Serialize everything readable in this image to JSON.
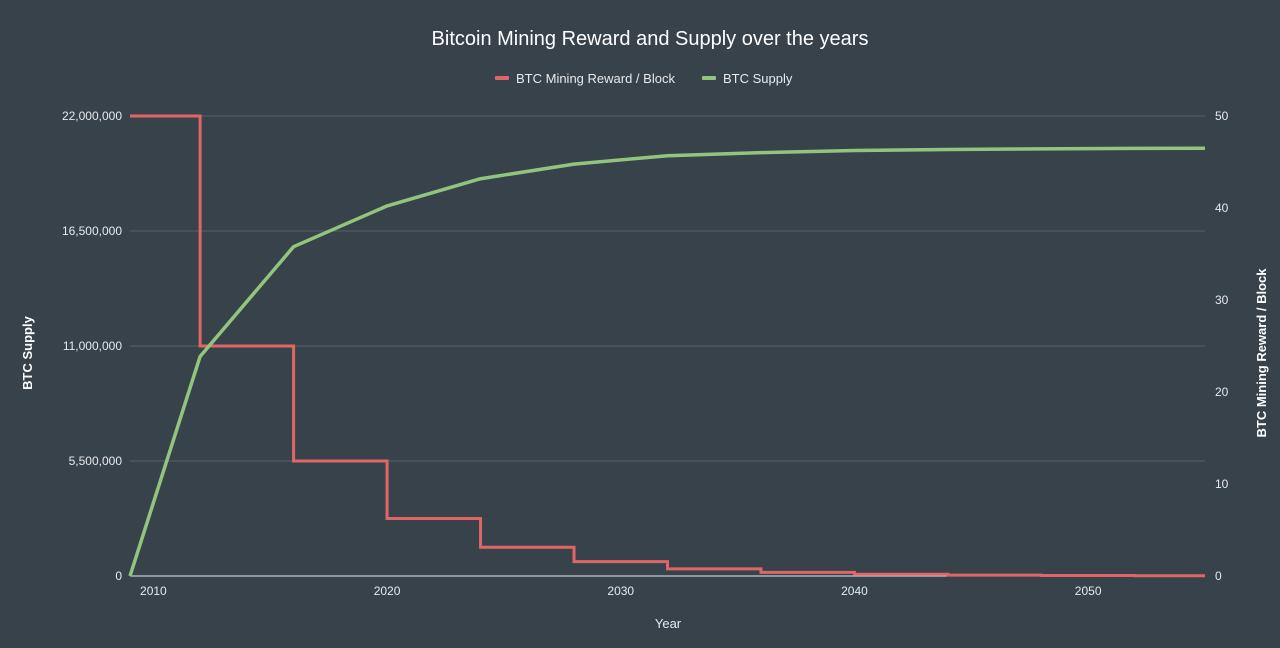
{
  "chart_data": {
    "type": "line",
    "title": "Bitcoin Mining Reward and Supply over the years",
    "xlabel": "Year",
    "ylabel_left": "BTC Supply",
    "ylabel_right": "BTC Mining Reward / Block",
    "xlim": [
      2009,
      2055
    ],
    "ylim_left": [
      0,
      22000000
    ],
    "ylim_right": [
      0,
      50
    ],
    "x_ticks": [
      "2010",
      "2020",
      "2030",
      "2040",
      "2050"
    ],
    "x_tick_values": [
      2010,
      2020,
      2030,
      2040,
      2050
    ],
    "y_left_ticks": [
      "0",
      "5,500,000",
      "11,000,000",
      "16,500,000",
      "22,000,000"
    ],
    "y_left_tick_values": [
      0,
      5500000,
      11000000,
      16500000,
      22000000
    ],
    "y_right_ticks": [
      "0",
      "10",
      "20",
      "30",
      "40",
      "50"
    ],
    "y_right_tick_values": [
      0,
      10,
      20,
      30,
      40,
      50
    ],
    "grid": true,
    "legend": "top",
    "colors": {
      "background": "#37424b",
      "reward": "#e06666",
      "supply": "#93c47d",
      "grid": "#56626b",
      "text": "#e8eaec"
    },
    "series": [
      {
        "name": "BTC Mining Reward / Block",
        "axis": "right",
        "style": "step",
        "x": [
          2009,
          2012,
          2016,
          2020,
          2024,
          2028,
          2032,
          2036,
          2040,
          2044,
          2048,
          2052,
          2055
        ],
        "y": [
          50,
          25,
          12.5,
          6.25,
          3.125,
          1.5625,
          0.78125,
          0.390625,
          0.1953125,
          0.09765625,
          0.048828125,
          0.0244140625,
          0.0244140625
        ]
      },
      {
        "name": "BTC Supply",
        "axis": "left",
        "style": "line",
        "x": [
          2009,
          2012,
          2016,
          2020,
          2024,
          2028,
          2032,
          2036,
          2040,
          2044,
          2048,
          2052,
          2055
        ],
        "y": [
          0,
          10500000,
          15750000,
          17700000,
          19000000,
          19700000,
          20100000,
          20250000,
          20350000,
          20400000,
          20430000,
          20450000,
          20460000
        ]
      }
    ]
  }
}
